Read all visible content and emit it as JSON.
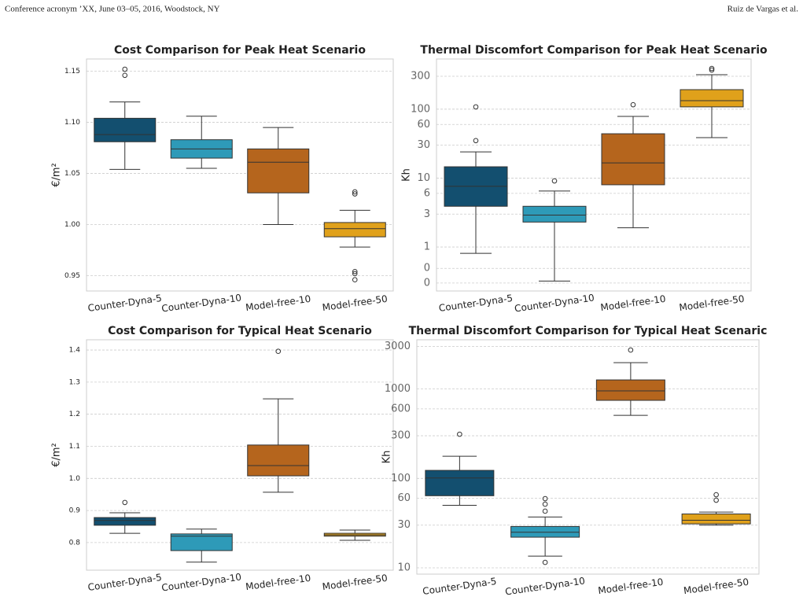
{
  "header": {
    "left": "Conference acronym ’XX, June 03–05, 2016, Woodstock, NY",
    "right": "Ruiz de Vargas et al."
  },
  "chart_data": [
    {
      "type": "box",
      "title": "Cost Comparison for  Peak Heat Scenario",
      "ylabel": "€/m²",
      "categories": [
        "Counter-Dyna-5",
        "Counter-Dyna-10",
        "Model-free-10",
        "Model-free-50"
      ],
      "colors": [
        "#134f6f",
        "#2e9ab8",
        "#b5651d",
        "#e0a11b"
      ],
      "stats": [
        {
          "low": 1.054,
          "q1": 1.081,
          "median": 1.088,
          "q3": 1.104,
          "high": 1.12,
          "outliers": [
            1.152,
            1.146
          ]
        },
        {
          "low": 1.055,
          "q1": 1.065,
          "median": 1.074,
          "q3": 1.083,
          "high": 1.106
        },
        {
          "low": 1.0,
          "q1": 1.031,
          "median": 1.061,
          "q3": 1.074,
          "high": 1.095
        },
        {
          "low": 0.978,
          "q1": 0.988,
          "median": 0.996,
          "q3": 1.002,
          "high": 1.014,
          "outliers": [
            1.032,
            1.03,
            0.954,
            0.952,
            0.946
          ]
        }
      ],
      "ylim": [
        0.935,
        1.162
      ],
      "yticks": [
        0.95,
        {
          "value": 1,
          "label": "1.00"
        },
        1.05,
        {
          "value": 1.1,
          "label": "1.10"
        },
        1.15
      ],
      "grid": true
    },
    {
      "type": "box",
      "title": "Thermal Discomfort Comparison for Peak Heat Scenario",
      "ylabel": "Kh",
      "yscale": "log",
      "categories": [
        "Counter-Dyna-5",
        "Counter-Dyna-10",
        "Model-free-10",
        "Model-free-50"
      ],
      "colors": [
        "#134f6f",
        "#2e9ab8",
        "#b5651d",
        "#e0a11b"
      ],
      "stats": [
        {
          "low": 0.81,
          "q1": 3.9,
          "median": 7.6,
          "q3": 14.6,
          "high": 24,
          "outliers": [
            108,
            35
          ]
        },
        {
          "low": 0.32,
          "q1": 2.3,
          "median": 2.9,
          "q3": 3.9,
          "high": 6.5,
          "outliers": [
            9.1
          ]
        },
        {
          "low": 1.9,
          "q1": 8,
          "median": 16.6,
          "q3": 44,
          "high": 78.5,
          "outliers": [
            116
          ]
        },
        {
          "low": 38.6,
          "q1": 108,
          "median": 133,
          "q3": 192,
          "high": 316,
          "outliers": [
            390,
            370
          ]
        }
      ],
      "ylim": [
        0.23,
        535
      ],
      "yticks": [
        {
          "value": 0.3,
          "label": "0"
        },
        {
          "value": 0.49,
          "label": "0"
        },
        1,
        3,
        6,
        10,
        30,
        60,
        100,
        300
      ],
      "grid": true
    },
    {
      "type": "box",
      "title": "Cost Comparison for  Typical Heat Scenario",
      "ylabel": "€/m²",
      "categories": [
        "Counter-Dyna-5",
        "Counter-Dyna-10",
        "Model-free-10",
        "Model-free-50"
      ],
      "colors": [
        "#134f6f",
        "#2e9ab8",
        "#b5651d",
        "#e0a11b"
      ],
      "stats": [
        {
          "low": 0.829,
          "q1": 0.854,
          "median": 0.869,
          "q3": 0.878,
          "high": 0.893,
          "outliers": [
            0.925
          ]
        },
        {
          "low": 0.739,
          "q1": 0.775,
          "median": 0.82,
          "q3": 0.827,
          "high": 0.842
        },
        {
          "low": 0.957,
          "q1": 1.008,
          "median": 1.04,
          "q3": 1.104,
          "high": 1.248,
          "outliers": [
            1.396
          ]
        },
        {
          "low": 0.807,
          "q1": 0.82,
          "median": 0.824,
          "q3": 0.829,
          "high": 0.839
        }
      ],
      "ylim": [
        0.714,
        1.432
      ],
      "yticks": [
        0.8,
        0.9,
        {
          "value": 1,
          "label": "1.0"
        },
        1.1,
        1.2,
        1.3,
        1.4
      ],
      "grid": true
    },
    {
      "type": "box",
      "title": "Thermal Discomfort Comparison for Typical Heat Scenaric",
      "ylabel": "Kh",
      "yscale": "log",
      "categories": [
        "Counter-Dyna-5",
        "Counter-Dyna-10",
        "Model-free-10",
        "Model-free-50"
      ],
      "colors": [
        "#134f6f",
        "#2e9ab8",
        "#b5651d",
        "#e0a11b"
      ],
      "stats": [
        {
          "low": 50,
          "q1": 64,
          "median": 101,
          "q3": 123,
          "high": 177,
          "outliers": [
            312
          ]
        },
        {
          "low": 13.5,
          "q1": 22,
          "median": 25,
          "q3": 29,
          "high": 37,
          "outliers": [
            59.4,
            51.5,
            43,
            11.5
          ]
        },
        {
          "low": 508,
          "q1": 747,
          "median": 952,
          "q3": 1264,
          "high": 1972,
          "outliers": [
            2729
          ]
        },
        {
          "low": 30,
          "q1": 31,
          "median": 34,
          "q3": 40,
          "high": 42,
          "outliers": [
            65.7,
            57
          ]
        }
      ],
      "ylim": [
        8.5,
        3556
      ],
      "yticks": [
        10,
        30,
        60,
        100,
        300,
        600,
        1000,
        3000
      ],
      "grid": true
    }
  ]
}
